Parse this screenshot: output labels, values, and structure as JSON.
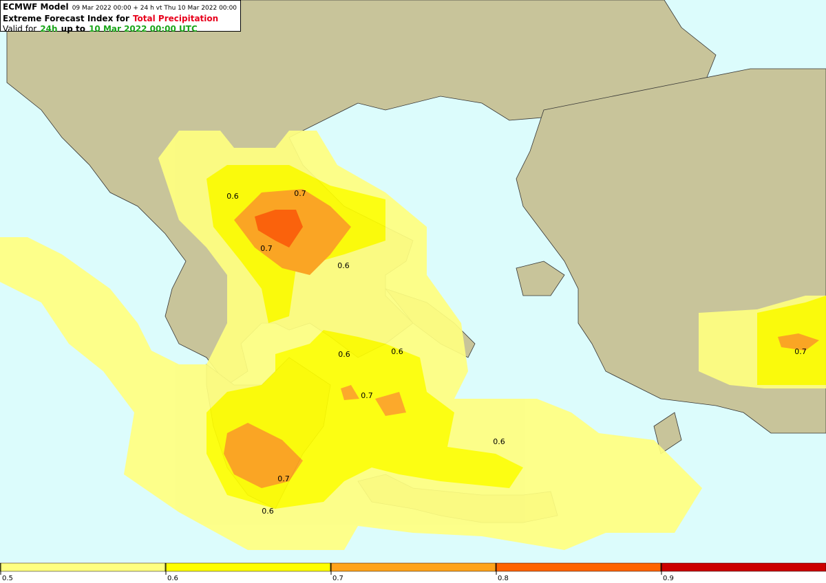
{
  "header": {
    "model": "ECMWF Model",
    "run": "09 Mar 2022 00:00 + 24 h vt Thu 10 Mar 2022 00:00",
    "title_prefix": "Extreme Forecast Index for",
    "title_param": "Total Precipitation",
    "valid_prefix": "Valid for",
    "valid_period": "24h",
    "valid_mid": "up to",
    "valid_time": "10 Mar 2022 00:00 UTC"
  },
  "contour_labels": [
    0.6,
    0.7,
    0.7,
    0.6,
    0.6,
    0.6,
    0.7,
    0.6,
    0.7,
    0.6,
    0.7
  ],
  "colorbar": {
    "ticks": [
      0.5,
      0.6,
      0.7,
      0.8,
      0.9
    ],
    "colors": [
      "#ffff80",
      "#ffff00",
      "#ffa31a",
      "#ff6400",
      "#cc0000"
    ]
  }
}
